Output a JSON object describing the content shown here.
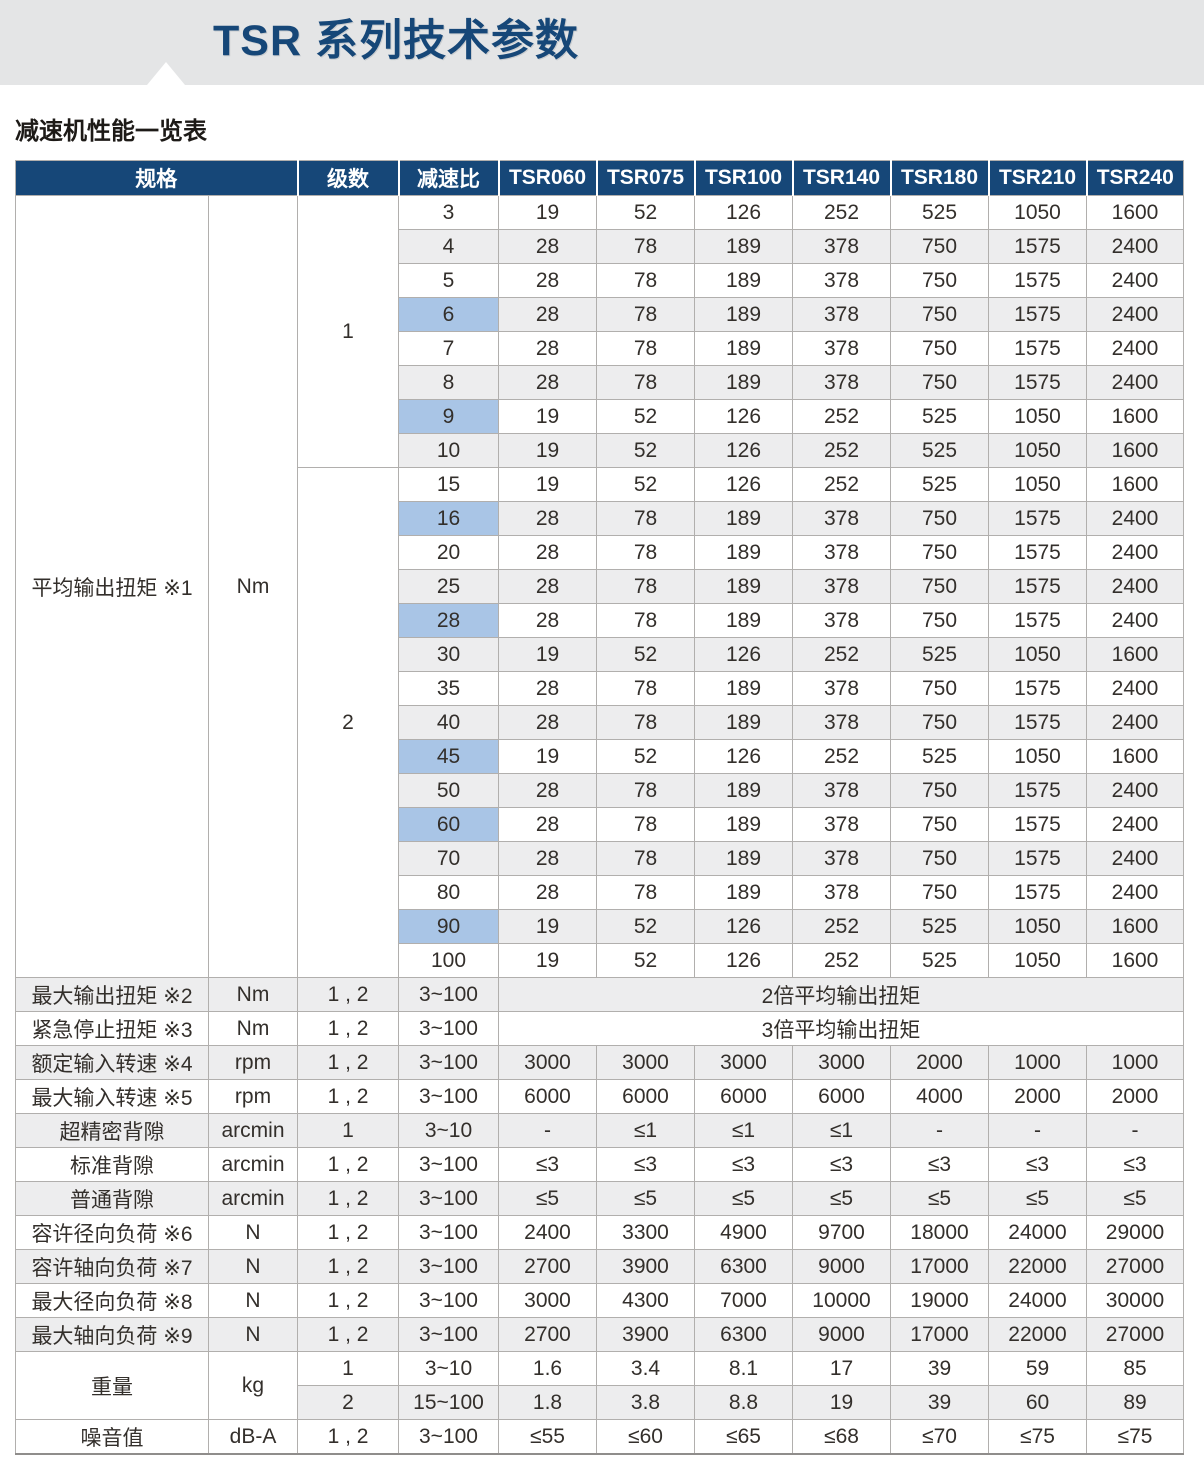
{
  "page": {
    "title": "TSR 系列技术参数",
    "subtitle": "减速机性能一览表"
  },
  "colors": {
    "banner_bg": "#e4e5e6",
    "title_text": "#164778",
    "header_bg": "#164778",
    "header_text": "#ffffff",
    "row_alt_bg": "#ededee",
    "ratio_highlight_bg": "#a9c5e6",
    "border": "#b1afad",
    "body_text": "#332f2b"
  },
  "table": {
    "column_headers": [
      "规格",
      "级数",
      "减速比",
      "TSR060",
      "TSR075",
      "TSR100",
      "TSR140",
      "TSR180",
      "TSR210",
      "TSR240"
    ],
    "torque_section": {
      "label": "平均输出扭矩 ※1",
      "unit": "Nm",
      "stage_groups": [
        {
          "stage": "1",
          "rows": [
            {
              "ratio": "3",
              "highlight": false,
              "values": [
                "19",
                "52",
                "126",
                "252",
                "525",
                "1050",
                "1600"
              ]
            },
            {
              "ratio": "4",
              "highlight": false,
              "values": [
                "28",
                "78",
                "189",
                "378",
                "750",
                "1575",
                "2400"
              ]
            },
            {
              "ratio": "5",
              "highlight": false,
              "values": [
                "28",
                "78",
                "189",
                "378",
                "750",
                "1575",
                "2400"
              ]
            },
            {
              "ratio": "6",
              "highlight": true,
              "values": [
                "28",
                "78",
                "189",
                "378",
                "750",
                "1575",
                "2400"
              ]
            },
            {
              "ratio": "7",
              "highlight": false,
              "values": [
                "28",
                "78",
                "189",
                "378",
                "750",
                "1575",
                "2400"
              ]
            },
            {
              "ratio": "8",
              "highlight": false,
              "values": [
                "28",
                "78",
                "189",
                "378",
                "750",
                "1575",
                "2400"
              ]
            },
            {
              "ratio": "9",
              "highlight": true,
              "values": [
                "19",
                "52",
                "126",
                "252",
                "525",
                "1050",
                "1600"
              ]
            },
            {
              "ratio": "10",
              "highlight": false,
              "values": [
                "19",
                "52",
                "126",
                "252",
                "525",
                "1050",
                "1600"
              ]
            }
          ]
        },
        {
          "stage": "2",
          "rows": [
            {
              "ratio": "15",
              "highlight": false,
              "values": [
                "19",
                "52",
                "126",
                "252",
                "525",
                "1050",
                "1600"
              ]
            },
            {
              "ratio": "16",
              "highlight": true,
              "values": [
                "28",
                "78",
                "189",
                "378",
                "750",
                "1575",
                "2400"
              ]
            },
            {
              "ratio": "20",
              "highlight": false,
              "values": [
                "28",
                "78",
                "189",
                "378",
                "750",
                "1575",
                "2400"
              ]
            },
            {
              "ratio": "25",
              "highlight": false,
              "values": [
                "28",
                "78",
                "189",
                "378",
                "750",
                "1575",
                "2400"
              ]
            },
            {
              "ratio": "28",
              "highlight": true,
              "values": [
                "28",
                "78",
                "189",
                "378",
                "750",
                "1575",
                "2400"
              ]
            },
            {
              "ratio": "30",
              "highlight": false,
              "values": [
                "19",
                "52",
                "126",
                "252",
                "525",
                "1050",
                "1600"
              ]
            },
            {
              "ratio": "35",
              "highlight": false,
              "values": [
                "28",
                "78",
                "189",
                "378",
                "750",
                "1575",
                "2400"
              ]
            },
            {
              "ratio": "40",
              "highlight": false,
              "values": [
                "28",
                "78",
                "189",
                "378",
                "750",
                "1575",
                "2400"
              ]
            },
            {
              "ratio": "45",
              "highlight": true,
              "values": [
                "19",
                "52",
                "126",
                "252",
                "525",
                "1050",
                "1600"
              ]
            },
            {
              "ratio": "50",
              "highlight": false,
              "values": [
                "28",
                "78",
                "189",
                "378",
                "750",
                "1575",
                "2400"
              ]
            },
            {
              "ratio": "60",
              "highlight": true,
              "values": [
                "28",
                "78",
                "189",
                "378",
                "750",
                "1575",
                "2400"
              ]
            },
            {
              "ratio": "70",
              "highlight": false,
              "values": [
                "28",
                "78",
                "189",
                "378",
                "750",
                "1575",
                "2400"
              ]
            },
            {
              "ratio": "80",
              "highlight": false,
              "values": [
                "28",
                "78",
                "189",
                "378",
                "750",
                "1575",
                "2400"
              ]
            },
            {
              "ratio": "90",
              "highlight": true,
              "values": [
                "19",
                "52",
                "126",
                "252",
                "525",
                "1050",
                "1600"
              ]
            },
            {
              "ratio": "100",
              "highlight": false,
              "values": [
                "19",
                "52",
                "126",
                "252",
                "525",
                "1050",
                "1600"
              ]
            }
          ]
        }
      ]
    },
    "spec_rows": [
      {
        "label": "最大输出扭矩 ※2",
        "unit": "Nm",
        "stages": "1 , 2",
        "ratio": "3~100",
        "merged_value": "2倍平均输出扭矩"
      },
      {
        "label": "紧急停止扭矩 ※3",
        "unit": "Nm",
        "stages": "1 , 2",
        "ratio": "3~100",
        "merged_value": "3倍平均输出扭矩"
      },
      {
        "label": "额定输入转速 ※4",
        "unit": "rpm",
        "stages": "1 , 2",
        "ratio": "3~100",
        "values": [
          "3000",
          "3000",
          "3000",
          "3000",
          "2000",
          "1000",
          "1000"
        ]
      },
      {
        "label": "最大输入转速 ※5",
        "unit": "rpm",
        "stages": "1 , 2",
        "ratio": "3~100",
        "values": [
          "6000",
          "6000",
          "6000",
          "6000",
          "4000",
          "2000",
          "2000"
        ]
      },
      {
        "label": "超精密背隙",
        "unit": "arcmin",
        "stages": "1",
        "ratio": "3~10",
        "values": [
          "-",
          "≤1",
          "≤1",
          "≤1",
          "-",
          "-",
          "-"
        ]
      },
      {
        "label": "标准背隙",
        "unit": "arcmin",
        "stages": "1 , 2",
        "ratio": "3~100",
        "values": [
          "≤3",
          "≤3",
          "≤3",
          "≤3",
          "≤3",
          "≤3",
          "≤3"
        ]
      },
      {
        "label": "普通背隙",
        "unit": "arcmin",
        "stages": "1 , 2",
        "ratio": "3~100",
        "values": [
          "≤5",
          "≤5",
          "≤5",
          "≤5",
          "≤5",
          "≤5",
          "≤5"
        ]
      },
      {
        "label": "容许径向负荷 ※6",
        "unit": "N",
        "stages": "1 , 2",
        "ratio": "3~100",
        "values": [
          "2400",
          "3300",
          "4900",
          "9700",
          "18000",
          "24000",
          "29000"
        ]
      },
      {
        "label": "容许轴向负荷 ※7",
        "unit": "N",
        "stages": "1 , 2",
        "ratio": "3~100",
        "values": [
          "2700",
          "3900",
          "6300",
          "9000",
          "17000",
          "22000",
          "27000"
        ]
      },
      {
        "label": "最大径向负荷 ※8",
        "unit": "N",
        "stages": "1 , 2",
        "ratio": "3~100",
        "values": [
          "3000",
          "4300",
          "7000",
          "10000",
          "19000",
          "24000",
          "30000"
        ]
      },
      {
        "label": "最大轴向负荷 ※9",
        "unit": "N",
        "stages": "1 , 2",
        "ratio": "3~100",
        "values": [
          "2700",
          "3900",
          "6300",
          "9000",
          "17000",
          "22000",
          "27000"
        ]
      }
    ],
    "weight_section": {
      "label": "重量",
      "unit": "kg",
      "rows": [
        {
          "stage": "1",
          "ratio": "3~10",
          "values": [
            "1.6",
            "3.4",
            "8.1",
            "17",
            "39",
            "59",
            "85"
          ]
        },
        {
          "stage": "2",
          "ratio": "15~100",
          "values": [
            "1.8",
            "3.8",
            "8.8",
            "19",
            "39",
            "60",
            "89"
          ]
        }
      ]
    },
    "noise_row": {
      "label": "噪音值",
      "unit": "dB-A",
      "stages": "1 , 2",
      "ratio": "3~100",
      "values": [
        "≤55",
        "≤60",
        "≤65",
        "≤68",
        "≤70",
        "≤75",
        "≤75"
      ]
    }
  }
}
